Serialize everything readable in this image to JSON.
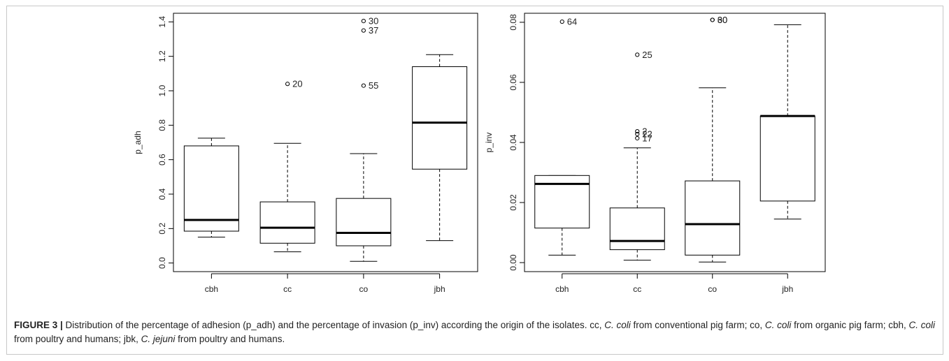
{
  "caption": {
    "figure_label": "FIGURE 3 |",
    "part1": " Distribution of the percentage of adhesion (p_adh) and the percentage of invasion (p_inv) according the origin of the isolates. cc, ",
    "italic1": "C. coli",
    "part2": " from conventional pig farm; co, ",
    "italic2": "C. coli",
    "part3": " from organic pig farm; cbh, ",
    "italic3": "C. coli",
    "part4": " from poultry and humans; jbk, ",
    "italic4": "C. jejuni",
    "part5": " from poultry and humans."
  },
  "chart_data": [
    {
      "type": "boxplot",
      "ylabel": "p_adh",
      "ylim": [
        -0.05,
        1.45
      ],
      "yticks": [
        "0.0",
        "0.2",
        "0.4",
        "0.6",
        "0.8",
        "1.0",
        "1.2",
        "1.4"
      ],
      "categories": [
        "cbh",
        "cc",
        "co",
        "jbh"
      ],
      "boxes": [
        {
          "category": "cbh",
          "min": 0.15,
          "q1": 0.185,
          "median": 0.25,
          "q3": 0.68,
          "max": 0.725
        },
        {
          "category": "cc",
          "min": 0.065,
          "q1": 0.115,
          "median": 0.205,
          "q3": 0.355,
          "max": 0.695
        },
        {
          "category": "co",
          "min": 0.01,
          "q1": 0.1,
          "median": 0.175,
          "q3": 0.375,
          "max": 0.635
        },
        {
          "category": "jbh",
          "min": 0.13,
          "q1": 0.545,
          "median": 0.815,
          "q3": 1.14,
          "max": 1.21
        }
      ],
      "outliers": [
        {
          "category": "cc",
          "value": 1.04,
          "label": "20"
        },
        {
          "category": "co",
          "value": 1.405,
          "label": "30"
        },
        {
          "category": "co",
          "value": 1.35,
          "label": "37"
        },
        {
          "category": "co",
          "value": 1.03,
          "label": "55"
        }
      ]
    },
    {
      "type": "boxplot",
      "ylabel": "p_inv",
      "ylim": [
        -0.003,
        0.083
      ],
      "yticks": [
        "0.00",
        "0.02",
        "0.04",
        "0.06",
        "0.08"
      ],
      "categories": [
        "cbh",
        "cc",
        "co",
        "jbh"
      ],
      "boxes": [
        {
          "category": "cbh",
          "min": 0.0025,
          "q1": 0.0115,
          "median": 0.0262,
          "q3": 0.029,
          "max": 0.029
        },
        {
          "category": "cc",
          "min": 0.0008,
          "q1": 0.0043,
          "median": 0.0072,
          "q3": 0.0182,
          "max": 0.0382
        },
        {
          "category": "co",
          "min": 0.0002,
          "q1": 0.0025,
          "median": 0.0128,
          "q3": 0.0272,
          "max": 0.0582
        },
        {
          "category": "jbh",
          "min": 0.0145,
          "q1": 0.0205,
          "median": 0.0488,
          "q3": 0.0488,
          "max": 0.0792
        }
      ],
      "outliers": [
        {
          "category": "cbh",
          "value": 0.0802,
          "label": "64"
        },
        {
          "category": "cc",
          "value": 0.0692,
          "label": "25"
        },
        {
          "category": "cc",
          "value": 0.0437,
          "label": "2"
        },
        {
          "category": "cc",
          "value": 0.0428,
          "label": "22"
        },
        {
          "category": "cc",
          "value": 0.0414,
          "label": "17"
        },
        {
          "category": "co",
          "value": 0.0808,
          "label": "30"
        },
        {
          "category": "co",
          "value": 0.0808,
          "label": "60"
        }
      ]
    }
  ]
}
